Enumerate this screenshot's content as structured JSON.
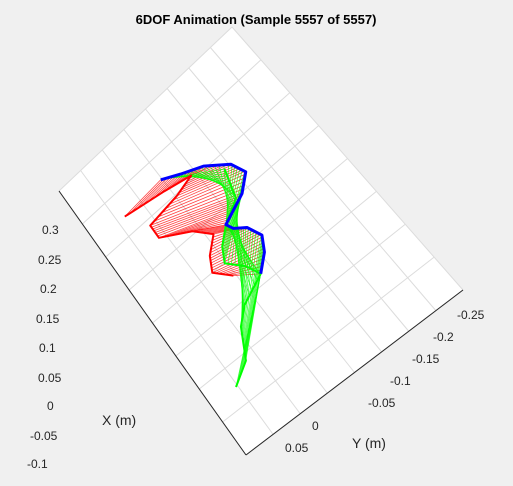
{
  "chart_data": {
    "type": "line",
    "title": "6DOF Animation (Sample 5557 of 5557)",
    "xlabel": "X (m)",
    "ylabel": "Y (m)",
    "x_ticks": [
      "0.3",
      "0.25",
      "0.2",
      "0.15",
      "0.1",
      "0.05",
      "0",
      "-0.05",
      "-0.1"
    ],
    "y_ticks": [
      "-0.25",
      "-0.2",
      "-0.15",
      "-0.1",
      "-0.05",
      "0",
      "0.05"
    ],
    "xlim": [
      -0.1,
      0.33
    ],
    "ylim": [
      -0.28,
      0.07
    ],
    "grid": true,
    "series": [
      {
        "color": "#ff0000",
        "x": [
          0.25,
          0.245,
          0.24,
          0.23,
          0.22,
          0.2,
          0.18,
          0.16,
          0.14,
          0.12,
          0.1
        ],
        "y": [
          0.02,
          -0.04,
          -0.08,
          -0.05,
          0.0,
          0.0,
          -0.04,
          -0.06,
          -0.04,
          -0.03,
          -0.05
        ]
      },
      {
        "color": "#00ff00",
        "x": [
          0.22,
          0.2,
          0.18,
          0.16,
          0.14,
          0.12,
          0.1,
          0.08,
          0.06,
          0.04,
          0.02,
          0.0,
          -0.02
        ],
        "y": [
          -0.12,
          -0.115,
          -0.11,
          -0.08,
          -0.06,
          -0.05,
          -0.07,
          -0.08,
          -0.04,
          -0.02,
          -0.01,
          0.0,
          0.03
        ]
      },
      {
        "color": "#0000ff",
        "x": [
          0.26,
          0.25,
          0.24,
          0.22,
          0.2,
          0.18,
          0.17,
          0.16,
          0.15,
          0.14,
          0.12,
          0.1,
          0.08
        ],
        "y": [
          -0.045,
          -0.07,
          -0.1,
          -0.13,
          -0.14,
          -0.12,
          -0.1,
          -0.08,
          -0.085,
          -0.1,
          -0.11,
          -0.1,
          -0.08
        ]
      }
    ]
  }
}
